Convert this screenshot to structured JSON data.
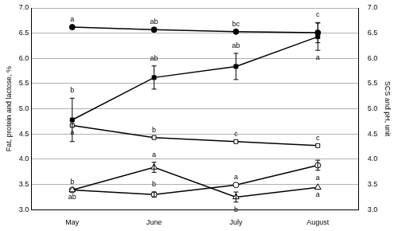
{
  "chart_data": {
    "type": "line",
    "categories": [
      "May",
      "June",
      "July",
      "August"
    ],
    "y_label": "Fat, protein and lactose, %",
    "y2_label": "SCS and pH, unit",
    "ylim": [
      3,
      7
    ],
    "yticks": [
      {
        "value": 3,
        "label": "3.0"
      },
      {
        "value": 3.5,
        "label": "3.5"
      },
      {
        "value": 4,
        "label": "4.0"
      },
      {
        "value": 4.5,
        "label": "4.5"
      },
      {
        "value": 5,
        "label": "5.0"
      },
      {
        "value": 5.5,
        "label": "5.5"
      },
      {
        "value": 6,
        "label": "6.0"
      },
      {
        "value": 6.5,
        "label": "6.5"
      },
      {
        "value": 7,
        "label": "7.0"
      }
    ],
    "y2lim": [
      3,
      7
    ],
    "y2ticks": [
      {
        "value": 3,
        "label": "3.0"
      },
      {
        "value": 3.5,
        "label": "3.5"
      },
      {
        "value": 4,
        "label": "4.0"
      },
      {
        "value": 4.5,
        "label": "4.5"
      },
      {
        "value": 5,
        "label": "5.0"
      },
      {
        "value": 5.5,
        "label": "5.5"
      },
      {
        "value": 6,
        "label": "6.0"
      },
      {
        "value": 6.5,
        "label": "6.5"
      },
      {
        "value": 7,
        "label": "7.0"
      }
    ],
    "grid": true,
    "series": [
      {
        "color": "#000000",
        "marker": "filled_circle",
        "axis": "y2",
        "values": [
          6.62,
          6.57,
          6.53,
          6.51
        ],
        "errors": [
          null,
          null,
          null,
          0.2
        ],
        "letters": [
          "a",
          "ab",
          "bc",
          "c"
        ]
      },
      {
        "color": "#000000",
        "marker": "filled_square",
        "axis": "y2",
        "values": [
          4.78,
          5.62,
          5.84,
          6.43
        ],
        "errors": [
          0.43,
          0.23,
          0.26,
          0.27
        ],
        "letters": [
          "b",
          "ab",
          "ab",
          "a"
        ]
      },
      {
        "color": "#000000",
        "marker": "open_square",
        "values": [
          4.67,
          4.43,
          4.35,
          4.27
        ],
        "errors": [
          null,
          null,
          null,
          null
        ],
        "letters": [
          "a",
          "b",
          "c",
          "c"
        ]
      },
      {
        "color": "#000000",
        "marker": "open_triangle",
        "values": [
          3.39,
          3.84,
          3.25,
          3.44
        ],
        "errors": [
          null,
          0.1,
          0.1,
          null
        ],
        "letters": [
          "b",
          "a",
          "b",
          "a"
        ]
      },
      {
        "color": "#000000",
        "marker": "open_circle",
        "values": [
          3.39,
          3.3,
          3.49,
          3.88
        ],
        "errors": [
          null,
          0.05,
          null,
          0.1
        ],
        "letters": [
          "ab",
          "b",
          "a",
          "a"
        ]
      }
    ]
  }
}
